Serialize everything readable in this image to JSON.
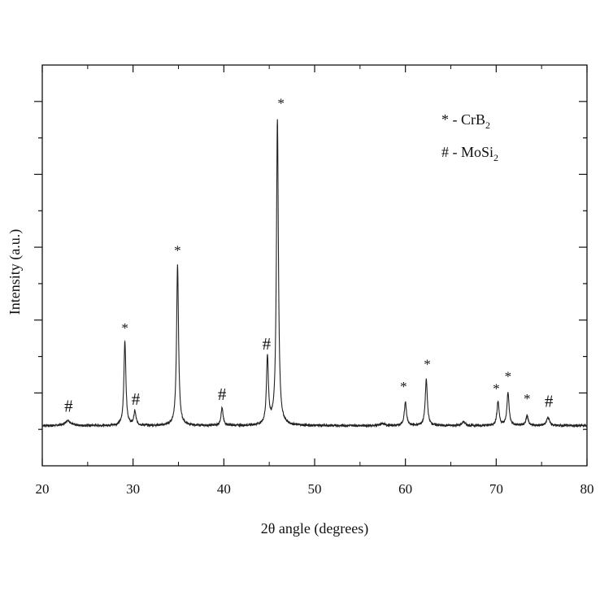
{
  "chart_data": {
    "type": "line",
    "xlabel": "2θ angle (degrees)",
    "ylabel": "Intensity (a.u.)",
    "xlim": [
      20,
      80
    ],
    "xticks": [
      20,
      30,
      40,
      50,
      60,
      70,
      80
    ],
    "yticks_labeled": false,
    "ylim": [
      0,
      100
    ],
    "grid": false,
    "legend": {
      "position": "top-right",
      "entries": [
        {
          "symbol": "*",
          "text": "- CrB",
          "subscript": "2"
        },
        {
          "symbol": "#",
          "text": "- MoSi",
          "subscript": "2"
        }
      ]
    },
    "baseline": 1.5,
    "peaks": [
      {
        "x": 22.8,
        "height": 1.5,
        "width": 0.35
      },
      {
        "x": 29.1,
        "height": 24.5,
        "width": 0.13
      },
      {
        "x": 30.2,
        "height": 4.0,
        "width": 0.14
      },
      {
        "x": 34.9,
        "height": 46.5,
        "width": 0.13
      },
      {
        "x": 39.8,
        "height": 5.0,
        "width": 0.14
      },
      {
        "x": 44.8,
        "height": 19.5,
        "width": 0.13
      },
      {
        "x": 45.9,
        "height": 88.5,
        "width": 0.13
      },
      {
        "x": 57.5,
        "height": 0.6,
        "width": 0.25
      },
      {
        "x": 60.0,
        "height": 6.8,
        "width": 0.14
      },
      {
        "x": 62.3,
        "height": 13.3,
        "width": 0.14
      },
      {
        "x": 66.4,
        "height": 1.1,
        "width": 0.2
      },
      {
        "x": 70.2,
        "height": 7.0,
        "width": 0.14
      },
      {
        "x": 71.3,
        "height": 9.5,
        "width": 0.14
      },
      {
        "x": 73.4,
        "height": 3.0,
        "width": 0.14
      },
      {
        "x": 75.7,
        "height": 2.4,
        "width": 0.2
      }
    ],
    "annotations": [
      {
        "symbol": "#",
        "x": 22.9,
        "y": 5.5
      },
      {
        "symbol": "*",
        "x": 29.1,
        "y": 28.5
      },
      {
        "symbol": "#",
        "x": 30.3,
        "y": 7.5
      },
      {
        "symbol": "*",
        "x": 34.9,
        "y": 51.0
      },
      {
        "symbol": "#",
        "x": 39.8,
        "y": 9.0
      },
      {
        "symbol": "#",
        "x": 44.7,
        "y": 23.5
      },
      {
        "symbol": "*",
        "x": 46.3,
        "y": 93.5
      },
      {
        "symbol": "*",
        "x": 59.8,
        "y": 11.5
      },
      {
        "symbol": "*",
        "x": 62.4,
        "y": 18.0
      },
      {
        "symbol": "*",
        "x": 70.0,
        "y": 11.0
      },
      {
        "symbol": "*",
        "x": 71.3,
        "y": 14.5
      },
      {
        "symbol": "*",
        "x": 73.4,
        "y": 8.0
      },
      {
        "symbol": "#",
        "x": 75.8,
        "y": 7.0
      }
    ]
  }
}
